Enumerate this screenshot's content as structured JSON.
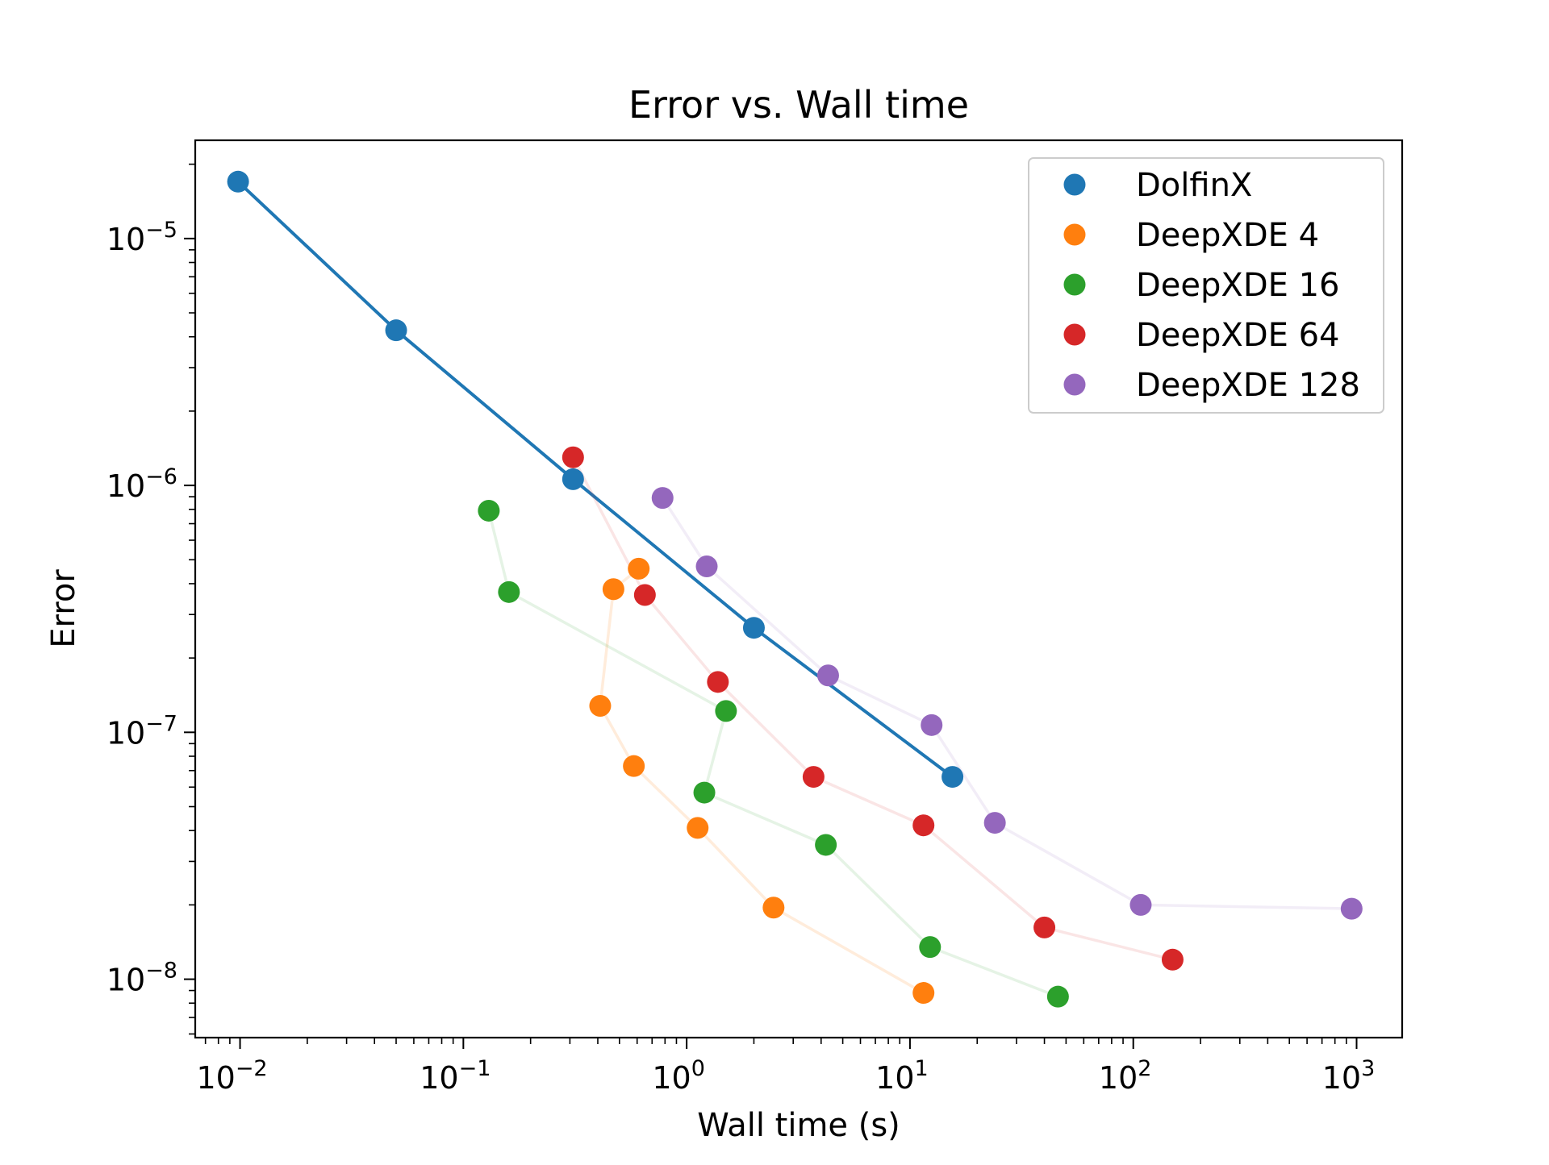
{
  "chart_data": {
    "type": "scatter",
    "title": "Error vs. Wall time",
    "xlabel": "Wall time (s)",
    "ylabel": "Error",
    "xscale": "log",
    "yscale": "log",
    "xlim": [
      0.0063,
      1600
    ],
    "ylim": [
      5.8e-09,
      2.5e-05
    ],
    "grid": false,
    "legend_position": "top-right",
    "x_ticks": [
      {
        "base": "10",
        "exp": "−2",
        "value": 0.01
      },
      {
        "base": "10",
        "exp": "−1",
        "value": 0.1
      },
      {
        "base": "10",
        "exp": "0",
        "value": 1
      },
      {
        "base": "10",
        "exp": "1",
        "value": 10
      },
      {
        "base": "10",
        "exp": "2",
        "value": 100
      },
      {
        "base": "10",
        "exp": "3",
        "value": 1000
      }
    ],
    "y_ticks": [
      {
        "base": "10",
        "exp": "−5",
        "value": 1e-05
      },
      {
        "base": "10",
        "exp": "−6",
        "value": 1e-06
      },
      {
        "base": "10",
        "exp": "−7",
        "value": 1e-07
      },
      {
        "base": "10",
        "exp": "−8",
        "value": 1e-08
      }
    ],
    "series": [
      {
        "name": "DolfinX",
        "color": "#1f77b4",
        "line_alpha": 1.0,
        "points": [
          [
            0.0098,
            1.7e-05
          ],
          [
            0.05,
            4.25e-06
          ],
          [
            0.31,
            1.06e-06
          ],
          [
            2.0,
            2.65e-07
          ],
          [
            15.5,
            6.6e-08
          ]
        ]
      },
      {
        "name": "DeepXDE 4",
        "color": "#ff7f0e",
        "line_alpha": 0.15,
        "points": [
          [
            0.61,
            4.6e-07
          ],
          [
            0.47,
            3.8e-07
          ],
          [
            0.41,
            1.28e-07
          ],
          [
            0.58,
            7.3e-08
          ],
          [
            1.12,
            4.1e-08
          ],
          [
            2.45,
            1.95e-08
          ],
          [
            11.5,
            8.8e-09
          ]
        ]
      },
      {
        "name": "DeepXDE 16",
        "color": "#2ca02c",
        "line_alpha": 0.12,
        "points": [
          [
            0.13,
            7.9e-07
          ],
          [
            0.16,
            3.7e-07
          ],
          [
            1.5,
            1.22e-07
          ],
          [
            1.2,
            5.7e-08
          ],
          [
            4.2,
            3.5e-08
          ],
          [
            12.3,
            1.35e-08
          ],
          [
            46,
            8.5e-09
          ]
        ]
      },
      {
        "name": "DeepXDE 64",
        "color": "#d62728",
        "line_alpha": 0.12,
        "points": [
          [
            0.31,
            1.3e-06
          ],
          [
            0.65,
            3.6e-07
          ],
          [
            1.38,
            1.6e-07
          ],
          [
            3.7,
            6.6e-08
          ],
          [
            11.5,
            4.2e-08
          ],
          [
            40,
            1.62e-08
          ],
          [
            150,
            1.2e-08
          ]
        ]
      },
      {
        "name": "DeepXDE 128",
        "color": "#9467bd",
        "line_alpha": 0.12,
        "points": [
          [
            0.78,
            8.9e-07
          ],
          [
            1.23,
            4.7e-07
          ],
          [
            4.3,
            1.7e-07
          ],
          [
            12.5,
            1.07e-07
          ],
          [
            24,
            4.3e-08
          ],
          [
            108,
            2e-08
          ],
          [
            950,
            1.93e-08
          ]
        ]
      }
    ]
  }
}
